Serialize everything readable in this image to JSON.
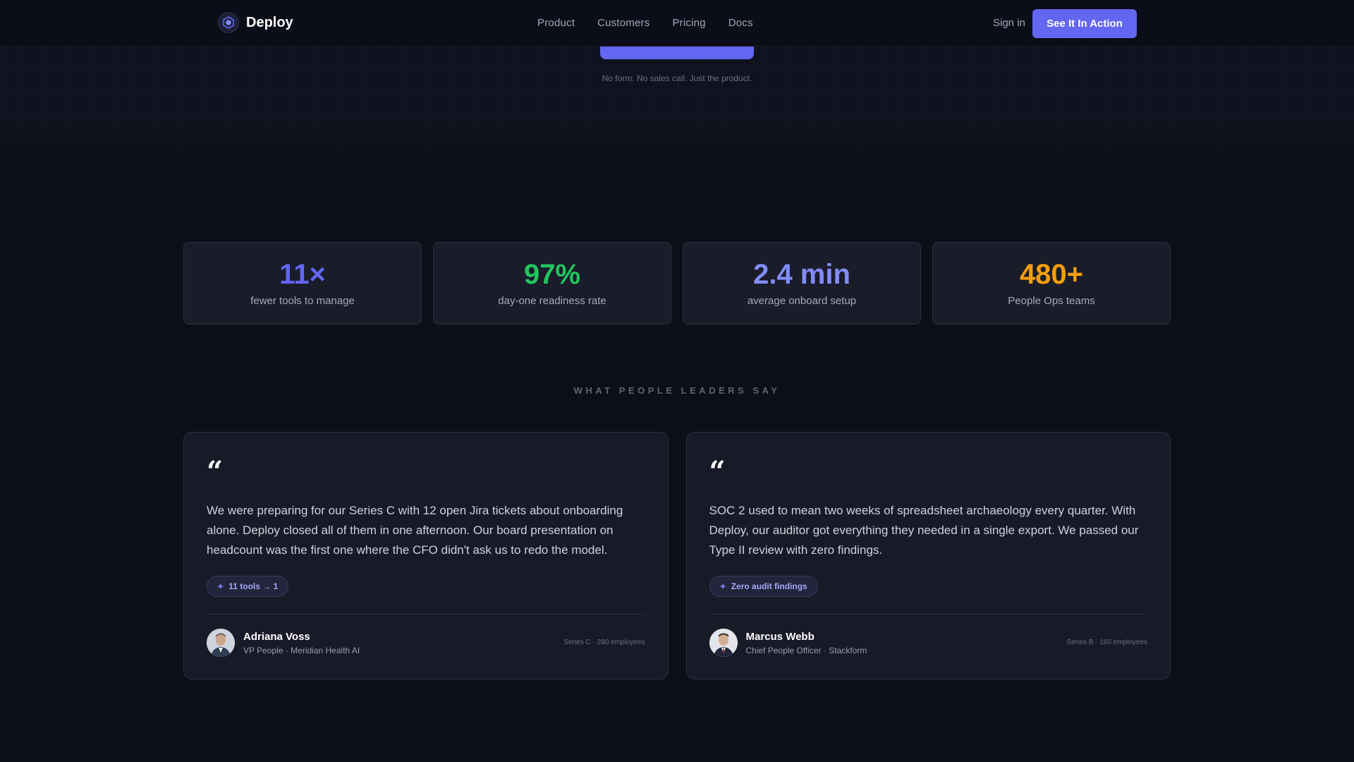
{
  "nav": {
    "logo_text": "Deploy",
    "links": [
      "Product",
      "Customers",
      "Pricing",
      "Docs"
    ],
    "signin": "Sign in",
    "cta": "See It In Action"
  },
  "hero": {
    "note": "No form. No sales call. Just the product."
  },
  "stats": [
    {
      "value": "11×",
      "label": "fewer tools to manage",
      "color": "#6366f1"
    },
    {
      "value": "97%",
      "label": "day-one readiness rate",
      "color": "#22c55e"
    },
    {
      "value": "2.4 min",
      "label": "average onboard setup",
      "color": "#818cf8"
    },
    {
      "value": "480+",
      "label": "People Ops teams",
      "color": "#f59e0b"
    }
  ],
  "testimonials": {
    "heading": "WHAT PEOPLE LEADERS SAY",
    "items": [
      {
        "quote_mark": "“",
        "text": "We were preparing for our Series C with 12 open Jira tickets about onboarding alone. Deploy closed all of them in one afternoon. Our board presentation on headcount was the first one where the CFO didn't ask us to redo the model.",
        "badge": "11 tools → 1",
        "name": "Adriana Voss",
        "role": "VP People · Meridian Health AI",
        "meta": "Series C · 280 employees"
      },
      {
        "quote_mark": "“",
        "text": "SOC 2 used to mean two weeks of spreadsheet archaeology every quarter. With Deploy, our auditor got everything they needed in a single export. We passed our Type II review with zero findings.",
        "badge": "Zero audit findings",
        "name": "Marcus Webb",
        "role": "Chief People Officer · Stackform",
        "meta": "Series B · 160 employees"
      }
    ]
  }
}
